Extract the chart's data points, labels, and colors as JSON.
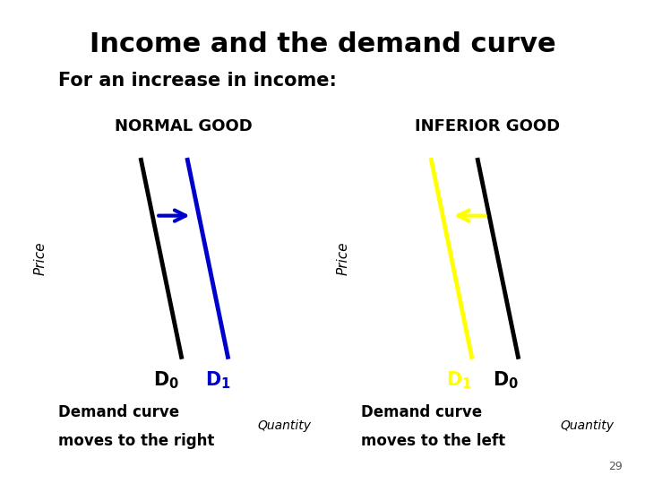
{
  "title": "Income and the demand curve",
  "subtitle": "For an increase in income:",
  "title_fontsize": 22,
  "subtitle_fontsize": 15,
  "bg_color": "#ffffff",
  "left_title": "NORMAL GOOD",
  "right_title": "INFERIOR GOOD",
  "left_caption1": "Demand curve",
  "left_caption2": "moves to the right",
  "right_caption1": "Demand curve",
  "right_caption2": "moves to the left",
  "qty_label": "Quantity",
  "price_label": "Price",
  "page_num": "29",
  "normal_d0_color": "#000000",
  "normal_d1_color": "#0000cc",
  "inferior_d0_color": "#000000",
  "inferior_d1_color": "#ffff00",
  "arrow_normal_color": "#0000cc",
  "arrow_inferior_color": "#ffff00"
}
